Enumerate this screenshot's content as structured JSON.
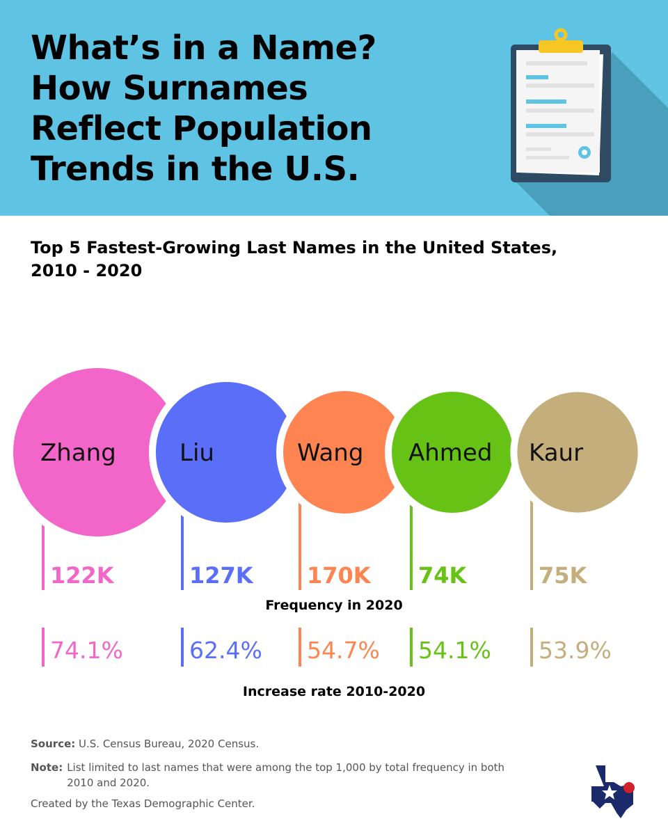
{
  "header": {
    "title": "What’s in a Name? How Surnames Reflect Population Trends in the U.S."
  },
  "chart_data": {
    "type": "bubble",
    "title": "Top 5 Fastest-Growing Last Names in the United States, 2010 - 2020",
    "categories": [
      "Zhang",
      "Liu",
      "Wang",
      "Ahmed",
      "Kaur"
    ],
    "colors": [
      "#f266c9",
      "#5b6ef7",
      "#fe8551",
      "#66c214",
      "#c3ae7c"
    ],
    "frequency": {
      "label": "Frequency in 2020",
      "labels": [
        "122K",
        "127K",
        "170K",
        "74K",
        "75K"
      ]
    },
    "increase_rate": {
      "label": "Increase rate 2010-2020",
      "values": [
        74.1,
        62.4,
        54.7,
        54.1,
        53.9
      ],
      "value_labels": [
        "74.1%",
        "62.4%",
        "54.7%",
        "54.1%",
        "53.9%"
      ]
    }
  },
  "footer": {
    "source_label": "Source:",
    "source": "U.S. Census Bureau, 2020 Census.",
    "note_label": "Note:",
    "note": "List limited to last names that were among the top 1,000 by total frequency in both 2010 and 2020.",
    "credit": "Created by the Texas Demographic Center."
  }
}
